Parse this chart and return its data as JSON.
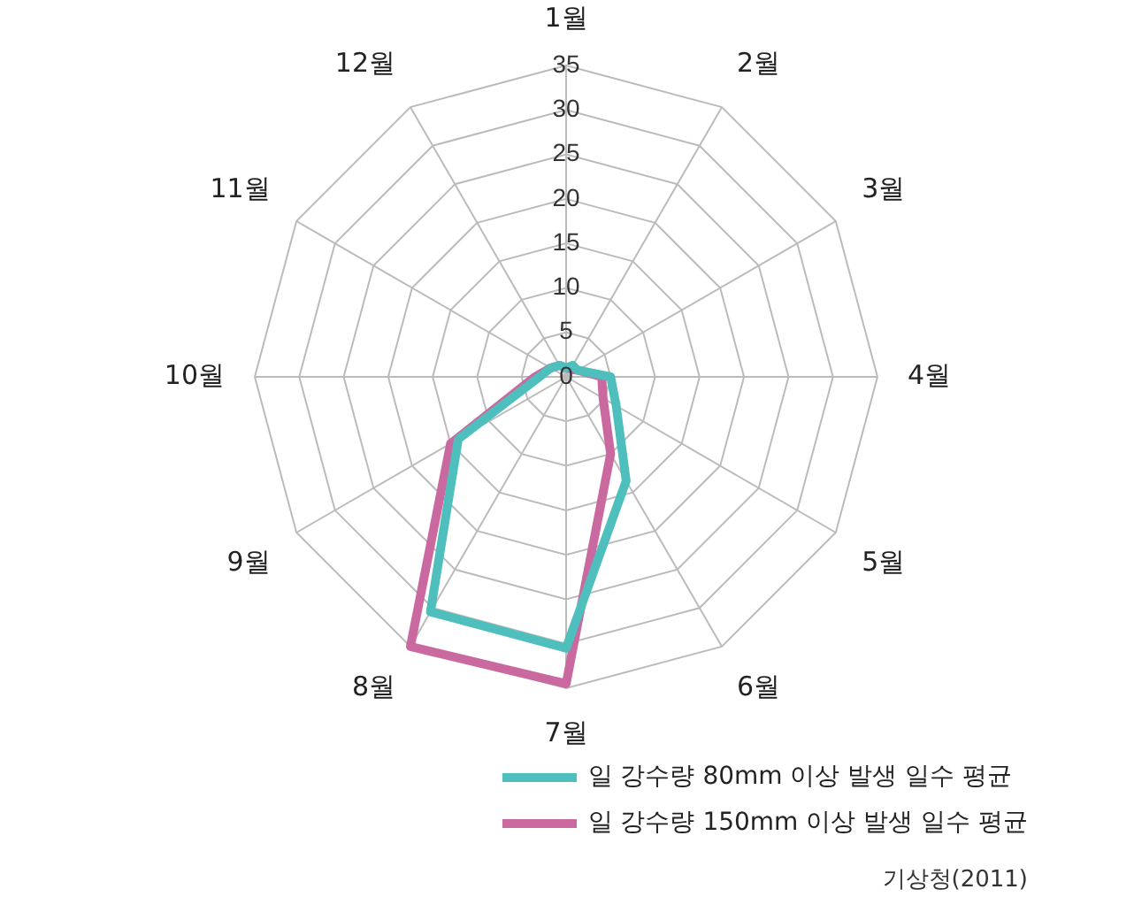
{
  "chart_data": {
    "type": "radar",
    "categories": [
      "1월",
      "2월",
      "3월",
      "4월",
      "5월",
      "6월",
      "7월",
      "8월",
      "9월",
      "10월",
      "11월",
      "12월"
    ],
    "series": [
      {
        "name": "일 강수량 80mm 이상 발생 일수 평균",
        "color": "#4fbfbd",
        "values": [
          1,
          1.5,
          1.5,
          5,
          6.5,
          13.5,
          30.5,
          30.5,
          14,
          3,
          2,
          1.5
        ]
      },
      {
        "name": "일 강수량 150mm 이상 발생 일수 평균",
        "color": "#c9699f",
        "values": [
          1,
          1,
          1.5,
          4,
          4.8,
          10,
          34.5,
          35,
          15,
          3.5,
          2,
          1.5
        ]
      }
    ],
    "ylim": [
      0,
      35
    ],
    "yticks": [
      0,
      5,
      10,
      15,
      20,
      25,
      30,
      35
    ],
    "grid": true,
    "legend": "bottom right",
    "marker": "none",
    "annotations": [
      "기상청(2011)"
    ]
  }
}
